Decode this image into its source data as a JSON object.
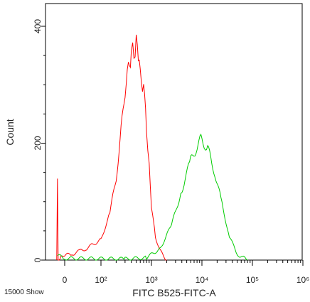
{
  "chart_data": {
    "type": "line",
    "title": "",
    "xlabel": "FITC B525-FITC-A",
    "ylabel": "Count",
    "footer_note": "15000 Show",
    "x_scale": "biexponential",
    "ylim": [
      0,
      430
    ],
    "grid": false,
    "legend": "none",
    "x_ticks": [
      {
        "value": 0,
        "label": "0"
      },
      {
        "value": 100,
        "label": "10²"
      },
      {
        "value": 1000,
        "label": "10³"
      },
      {
        "value": 10000,
        "label": "10⁴"
      },
      {
        "value": 100000,
        "label": "10⁵"
      },
      {
        "value": 1000000,
        "label": "10⁶"
      }
    ],
    "y_ticks": [
      {
        "value": 0,
        "label": "0"
      },
      {
        "value": 200,
        "label": "200"
      },
      {
        "value": 400,
        "label": "400"
      }
    ],
    "series": [
      {
        "color": "#ff0000",
        "x": [
          -22,
          -20,
          -18,
          -10,
          0,
          20,
          40,
          60,
          100,
          150,
          200,
          250,
          300,
          350,
          400,
          450,
          500,
          550,
          600,
          700,
          800,
          900,
          1000,
          1200,
          1500,
          2000
        ],
        "y": [
          0,
          135,
          0,
          5,
          8,
          10,
          15,
          20,
          35,
          80,
          140,
          220,
          290,
          335,
          350,
          362,
          368,
          350,
          330,
          290,
          230,
          160,
          90,
          40,
          15,
          0
        ]
      },
      {
        "color": "#00cc00",
        "x": [
          -20,
          0,
          300,
          800,
          1500,
          2500,
          4000,
          6000,
          8000,
          10000,
          13000,
          18000,
          25000,
          35000,
          50000,
          80000
        ],
        "y": [
          8,
          3,
          2,
          4,
          20,
          60,
          120,
          170,
          195,
          208,
          190,
          150,
          95,
          40,
          10,
          0
        ]
      }
    ]
  }
}
